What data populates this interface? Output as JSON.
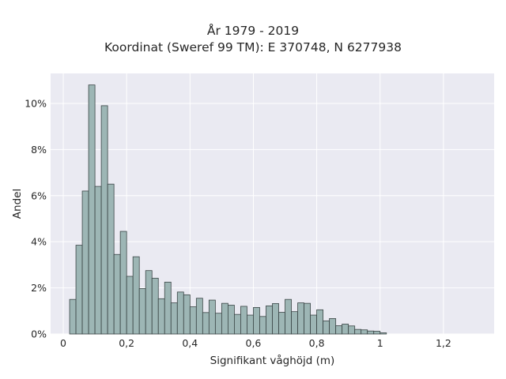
{
  "chart_data": {
    "type": "bar",
    "title": "År 1979 - 2019",
    "subtitle": "Koordinat (Sweref 99 TM): E 370748, N 6277938",
    "xlabel": "Signifikant våghöjd (m)",
    "ylabel": "Andel",
    "xlim": [
      -0.04,
      1.36
    ],
    "ylim": [
      0,
      11.3
    ],
    "x_ticks": [
      0,
      0.2,
      0.4,
      0.6,
      0.8,
      1,
      1.2
    ],
    "x_tick_labels": [
      "0",
      "0,2",
      "0,4",
      "0,6",
      "0,8",
      "1",
      "1,2"
    ],
    "y_ticks": [
      0,
      2,
      4,
      6,
      8,
      10
    ],
    "y_tick_labels": [
      "0%",
      "2%",
      "4%",
      "6%",
      "8%",
      "10%"
    ],
    "bin_start": 0.02,
    "bin_width": 0.02,
    "values": [
      1.5,
      3.85,
      6.2,
      10.8,
      6.4,
      9.9,
      6.5,
      3.45,
      4.45,
      2.5,
      3.35,
      1.97,
      2.75,
      2.42,
      1.53,
      2.25,
      1.35,
      1.82,
      1.7,
      1.18,
      1.55,
      0.93,
      1.47,
      0.9,
      1.33,
      1.25,
      0.85,
      1.2,
      0.82,
      1.15,
      0.76,
      1.22,
      1.32,
      0.94,
      1.5,
      0.97,
      1.35,
      1.33,
      0.82,
      1.05,
      0.57,
      0.67,
      0.36,
      0.43,
      0.35,
      0.2,
      0.18,
      0.13,
      0.12,
      0.05
    ],
    "grid": true,
    "colors": {
      "bar_fill": "#9db6b5",
      "bar_edge": "#3a4545",
      "plot_bg": "#eaeaf2",
      "grid": "#ffffff"
    }
  }
}
